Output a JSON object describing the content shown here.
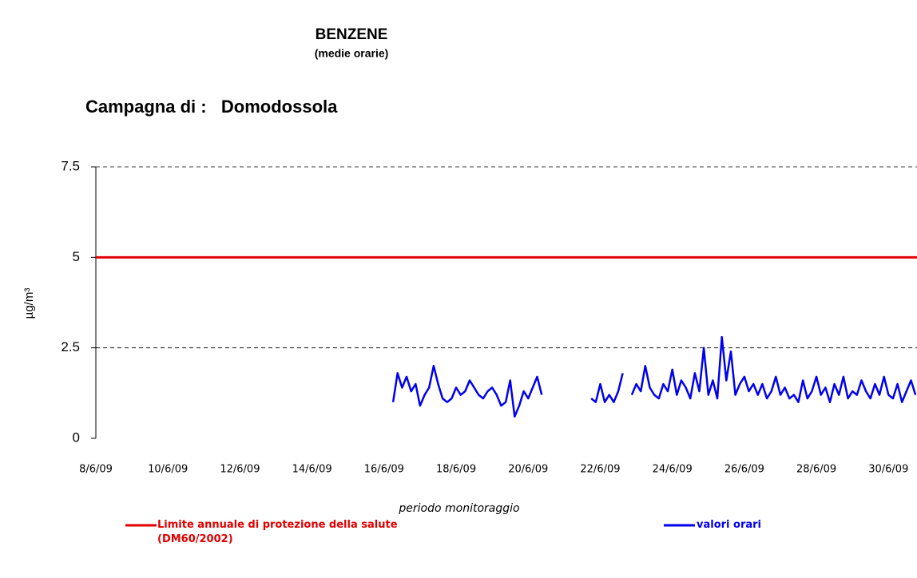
{
  "chart_data": {
    "type": "line",
    "title": "BENZENE",
    "subtitle": "(medie orarie)",
    "header": "Campagna di :   Domodossola",
    "ylabel": "µg/m³",
    "xlabel": "periodo monitoraggio",
    "ylim": [
      0,
      7.5
    ],
    "yticks": [
      0,
      2.5,
      5,
      7.5
    ],
    "xlim": [
      "2009-06-08T00:00",
      "2009-06-30T19:00"
    ],
    "xticks": [
      {
        "value": "2009-06-08T00:00",
        "label": "8/6/09"
      },
      {
        "value": "2009-06-10T00:00",
        "label": "10/6/09"
      },
      {
        "value": "2009-06-12T00:00",
        "label": "12/6/09"
      },
      {
        "value": "2009-06-14T00:00",
        "label": "14/6/09"
      },
      {
        "value": "2009-06-16T00:00",
        "label": "16/6/09"
      },
      {
        "value": "2009-06-18T00:00",
        "label": "18/6/09"
      },
      {
        "value": "2009-06-20T00:00",
        "label": "20/6/09"
      },
      {
        "value": "2009-06-22T00:00",
        "label": "22/6/09"
      },
      {
        "value": "2009-06-24T00:00",
        "label": "24/6/09"
      },
      {
        "value": "2009-06-26T00:00",
        "label": "26/6/09"
      },
      {
        "value": "2009-06-28T00:00",
        "label": "28/6/09"
      },
      {
        "value": "2009-06-30T00:00",
        "label": "30/6/09"
      }
    ],
    "grid": true,
    "reference_line": {
      "name": "Limite annuale di protezione della salute (DM60/2002)",
      "value": 5,
      "color": "#e00000"
    },
    "series": [
      {
        "name": "valori orari",
        "color": "#0000ee",
        "x": [
          "2009-06-16T06:00",
          "2009-06-16T09:00",
          "2009-06-16T12:00",
          "2009-06-16T15:00",
          "2009-06-16T18:00",
          "2009-06-16T21:00",
          "2009-06-17T00:00",
          "2009-06-17T03:00",
          "2009-06-17T06:00",
          "2009-06-17T09:00",
          "2009-06-17T12:00",
          "2009-06-17T15:00",
          "2009-06-17T18:00",
          "2009-06-17T21:00",
          "2009-06-18T00:00",
          "2009-06-18T03:00",
          "2009-06-18T06:00",
          "2009-06-18T09:00",
          "2009-06-18T12:00",
          "2009-06-18T15:00",
          "2009-06-18T18:00",
          "2009-06-18T21:00",
          "2009-06-19T00:00",
          "2009-06-19T03:00",
          "2009-06-19T06:00",
          "2009-06-19T09:00",
          "2009-06-19T12:00",
          "2009-06-19T15:00",
          "2009-06-19T18:00",
          "2009-06-19T21:00",
          "2009-06-20T00:00",
          "2009-06-20T03:00",
          "2009-06-20T06:00",
          "2009-06-20T09:00",
          "2009-06-20T12:00",
          "2009-06-20T15:00",
          "2009-06-20T18:00",
          "2009-06-20T21:00",
          "2009-06-21T00:00",
          "2009-06-21T03:00",
          "2009-06-21T06:00",
          "2009-06-21T09:00",
          "2009-06-21T12:00",
          "2009-06-21T15:00",
          "2009-06-21T18:00",
          "2009-06-21T21:00",
          "2009-06-22T00:00",
          "2009-06-22T03:00",
          "2009-06-22T06:00",
          "2009-06-22T09:00",
          "2009-06-22T12:00",
          "2009-06-22T15:00",
          "2009-06-22T18:00",
          "2009-06-22T21:00",
          "2009-06-23T00:00",
          "2009-06-23T03:00",
          "2009-06-23T06:00",
          "2009-06-23T09:00",
          "2009-06-23T12:00",
          "2009-06-23T15:00",
          "2009-06-23T18:00",
          "2009-06-23T21:00",
          "2009-06-24T00:00",
          "2009-06-24T03:00",
          "2009-06-24T06:00",
          "2009-06-24T09:00",
          "2009-06-24T12:00",
          "2009-06-24T15:00",
          "2009-06-24T18:00",
          "2009-06-24T21:00",
          "2009-06-25T00:00",
          "2009-06-25T03:00",
          "2009-06-25T06:00",
          "2009-06-25T09:00",
          "2009-06-25T12:00",
          "2009-06-25T15:00",
          "2009-06-25T18:00",
          "2009-06-25T21:00",
          "2009-06-26T00:00",
          "2009-06-26T03:00",
          "2009-06-26T06:00",
          "2009-06-26T09:00",
          "2009-06-26T12:00",
          "2009-06-26T15:00",
          "2009-06-26T18:00",
          "2009-06-26T21:00",
          "2009-06-27T00:00",
          "2009-06-27T03:00",
          "2009-06-27T06:00",
          "2009-06-27T09:00",
          "2009-06-27T12:00",
          "2009-06-27T15:00",
          "2009-06-27T18:00",
          "2009-06-27T21:00",
          "2009-06-28T00:00",
          "2009-06-28T03:00",
          "2009-06-28T06:00",
          "2009-06-28T09:00",
          "2009-06-28T12:00",
          "2009-06-28T15:00",
          "2009-06-28T18:00",
          "2009-06-28T21:00",
          "2009-06-29T00:00",
          "2009-06-29T03:00",
          "2009-06-29T06:00",
          "2009-06-29T09:00",
          "2009-06-29T12:00",
          "2009-06-29T15:00",
          "2009-06-29T18:00",
          "2009-06-29T21:00",
          "2009-06-30T00:00",
          "2009-06-30T03:00",
          "2009-06-30T06:00",
          "2009-06-30T09:00",
          "2009-06-30T12:00",
          "2009-06-30T15:00",
          "2009-06-30T18:00"
        ],
        "values": [
          1.0,
          1.8,
          1.4,
          1.7,
          1.3,
          1.5,
          0.9,
          1.2,
          1.4,
          2.0,
          1.5,
          1.1,
          1.0,
          1.1,
          1.4,
          1.2,
          1.3,
          1.6,
          1.4,
          1.2,
          1.1,
          1.3,
          1.4,
          1.2,
          0.9,
          1.0,
          1.6,
          0.6,
          0.9,
          1.3,
          1.1,
          1.4,
          1.7,
          1.2,
          null,
          null,
          null,
          null,
          null,
          null,
          null,
          null,
          null,
          null,
          1.1,
          1.0,
          1.5,
          1.0,
          1.2,
          1.0,
          1.3,
          1.8,
          null,
          1.2,
          1.5,
          1.3,
          2.0,
          1.4,
          1.2,
          1.1,
          1.5,
          1.3,
          1.9,
          1.2,
          1.6,
          1.4,
          1.1,
          1.8,
          1.3,
          2.5,
          1.2,
          1.6,
          1.1,
          2.8,
          1.6,
          2.4,
          1.2,
          1.5,
          1.7,
          1.3,
          1.5,
          1.2,
          1.5,
          1.1,
          1.3,
          1.7,
          1.2,
          1.4,
          1.1,
          1.2,
          1.0,
          1.6,
          1.1,
          1.3,
          1.7,
          1.2,
          1.4,
          1.0,
          1.5,
          1.2,
          1.7,
          1.1,
          1.3,
          1.2,
          1.6,
          1.3,
          1.1,
          1.5,
          1.2,
          1.7,
          1.2,
          1.1,
          1.5,
          1.0,
          1.3,
          1.6,
          1.2
        ]
      }
    ]
  }
}
